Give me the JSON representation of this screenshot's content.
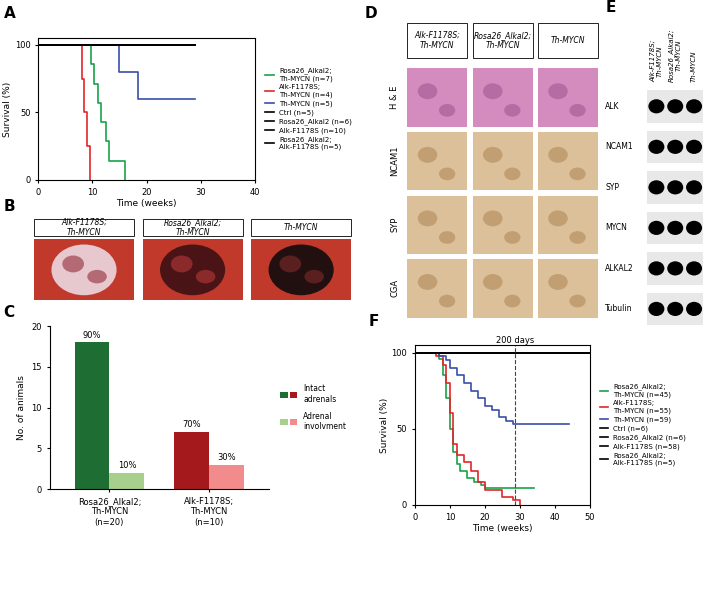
{
  "chart_data": [
    {
      "type": "line",
      "title": "A",
      "line_style": "steps",
      "legend": "center left",
      "x_label": "Time (weeks)",
      "y_label": "Survival (%)",
      "xlim": [
        0,
        40
      ],
      "xticks": [
        0,
        10,
        20,
        30,
        40
      ],
      "ylim": [
        0,
        105
      ],
      "yticks": [
        0,
        50,
        100
      ],
      "series": [
        {
          "name": "Rosa26_Alkal2;\nTh-MYCN (n=7)",
          "color": "#1aa34a",
          "x": [
            0,
            9.8,
            10.3,
            11,
            11.5,
            12.5,
            13,
            16
          ],
          "values": [
            100,
            86,
            71,
            57,
            43,
            29,
            14,
            0
          ]
        },
        {
          "name": "Alk-F1178S;\nTh-MYCN (n=4)",
          "color": "#e3262a",
          "x": [
            0,
            8,
            8.5,
            9,
            9.5
          ],
          "values": [
            100,
            75,
            50,
            25,
            0
          ]
        },
        {
          "name": "Th-MYCN (n=5)",
          "color": "#3b4fa8",
          "x": [
            0,
            15,
            18.5,
            29
          ],
          "values": [
            100,
            80,
            60,
            60
          ]
        },
        {
          "name": "Ctrl (n=5)",
          "color": "#000000",
          "x": [
            0,
            29
          ],
          "values": [
            100,
            100
          ]
        },
        {
          "name": "Rosa26_Alkal2 (n=6)",
          "color": "#000000",
          "x": [
            0,
            29
          ],
          "values": [
            100,
            100
          ]
        },
        {
          "name": "Alk-F1178S (n=10)",
          "color": "#000000",
          "x": [
            0,
            29
          ],
          "values": [
            100,
            100
          ]
        },
        {
          "name": "Rosa26_Alkal2;\nAlk-F1178S (n=5)",
          "color": "#000000",
          "x": [
            0,
            29
          ],
          "values": [
            100,
            100
          ]
        }
      ]
    },
    {
      "type": "image",
      "title": "B",
      "columns": [
        "Alk-F1178S;\nTh-MYCN",
        "Rosa26_Alkal2;\nTh-MYCN",
        "Th-MYCN"
      ]
    },
    {
      "type": "bar",
      "title": "C",
      "legend": "center left",
      "y_label": "No. of animals",
      "categories": [
        "Rosa26_Alkal2;\nTh-MYCN\n(n=20)",
        "Alk-F1178S;\nTh-MYCN\n(n=10)"
      ],
      "ylim": [
        0,
        20
      ],
      "yticks": [
        0,
        5,
        10,
        15,
        20
      ],
      "series": [
        {
          "name": "Intact\nadrenals",
          "colors": [
            "#1e6e33",
            "#a3191c"
          ],
          "values": [
            18,
            7
          ],
          "annotations": [
            "90%",
            "70%"
          ]
        },
        {
          "name": "Adrenal\ninvolvment",
          "colors": [
            "#a8d08d",
            "#f28b8b"
          ],
          "values": [
            2,
            3
          ],
          "annotations": [
            "10%",
            "30%"
          ]
        }
      ]
    },
    {
      "type": "image_grid",
      "title": "D",
      "columns": [
        "Alk-F1178S;\nTh-MYCN",
        "Rosa26_Alkal2;\nTh-MYCN",
        "Th-MYCN"
      ],
      "rows": [
        "H & E",
        "NCAM1",
        "SYP",
        "CGA"
      ]
    },
    {
      "type": "blot",
      "title": "E",
      "columns": [
        "Alk-F1178S;\nTh-MYCN",
        "Rosa26_Alkal2;\nTh-MYCN",
        "Th-MYCN"
      ],
      "rows": [
        "ALK",
        "NCAM1",
        "SYP",
        "MYCN",
        "ALKAL2",
        "Tubulin"
      ]
    },
    {
      "type": "line",
      "title": "F",
      "line_style": "steps",
      "legend": "center left",
      "x_label": "Time (weeks)",
      "y_label": "Survival (%)",
      "xlim": [
        0,
        50
      ],
      "xticks": [
        0,
        10,
        20,
        30,
        40,
        50
      ],
      "ylim": [
        0,
        105
      ],
      "yticks": [
        0,
        50,
        100
      ],
      "annotations": [
        {
          "text": "200 days",
          "x": 28.6
        }
      ],
      "series": [
        {
          "name": "Rosa26_Alkal2;\nTh-MYCN (n=45)",
          "color": "#1aa34a",
          "x": [
            0,
            7,
            8,
            9,
            10,
            11,
            12,
            13,
            15,
            17,
            19,
            20,
            34
          ],
          "values": [
            100,
            96,
            85,
            70,
            50,
            35,
            27,
            22,
            18,
            15,
            13,
            11,
            11
          ]
        },
        {
          "name": "Alk-F1178S;\nTh-MYCN (n=55)",
          "color": "#e3262a",
          "x": [
            0,
            6,
            8,
            9,
            10,
            11,
            12,
            14,
            16,
            18,
            20,
            25,
            28,
            30
          ],
          "values": [
            100,
            98,
            92,
            80,
            60,
            40,
            33,
            28,
            22,
            15,
            10,
            5,
            3,
            0
          ]
        },
        {
          "name": "Th-MYCN (n=59)",
          "color": "#3b4fa8",
          "x": [
            0,
            7,
            9,
            10,
            12,
            14,
            16,
            18,
            20,
            22,
            24,
            26,
            28,
            44
          ],
          "values": [
            100,
            98,
            95,
            90,
            85,
            80,
            75,
            70,
            65,
            62,
            58,
            55,
            53,
            53
          ]
        },
        {
          "name": "Ctrl (n=6)",
          "color": "#000000",
          "x": [
            0,
            50
          ],
          "values": [
            100,
            100
          ]
        },
        {
          "name": "Rosa26_Alkal2 (n=6)",
          "color": "#000000",
          "x": [
            0,
            50
          ],
          "values": [
            100,
            100
          ]
        },
        {
          "name": "Alk-F1178S (n=58)",
          "color": "#000000",
          "x": [
            0,
            50
          ],
          "values": [
            100,
            100
          ]
        },
        {
          "name": "Rosa26_Alkal2;\nAlk-F1178S (n=5)",
          "color": "#000000",
          "x": [
            0,
            50
          ],
          "values": [
            100,
            100
          ]
        }
      ]
    }
  ]
}
